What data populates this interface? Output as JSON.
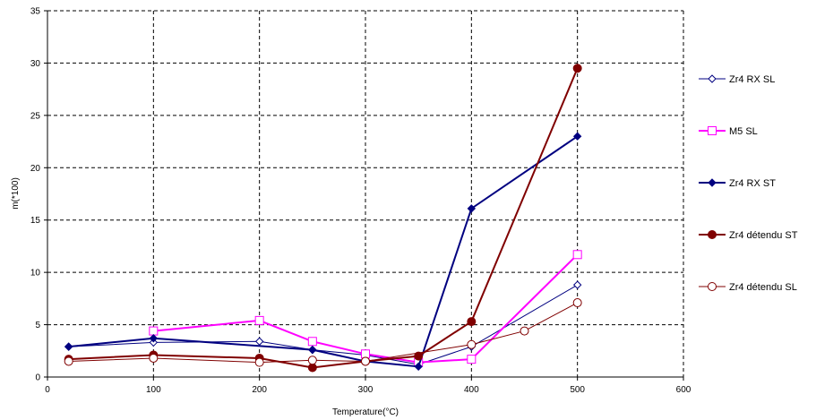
{
  "chart_data": {
    "type": "line",
    "xlabel": "Temperature(°C)",
    "ylabel": "m(*100)",
    "xlim": [
      0,
      600
    ],
    "ylim": [
      0,
      35
    ],
    "xticks": [
      0,
      100,
      200,
      300,
      400,
      500,
      600
    ],
    "yticks": [
      0,
      5,
      10,
      15,
      20,
      25,
      30,
      35
    ],
    "grid": true,
    "legend_position": "right",
    "series": [
      {
        "name": "Zr4 RX SL",
        "color": "#000080",
        "marker": "diamond-open",
        "line_width": 1,
        "x": [
          20,
          100,
          200,
          250,
          300,
          350,
          400,
          500
        ],
        "y": [
          2.9,
          3.3,
          3.4,
          2.6,
          2.1,
          1.2,
          2.9,
          8.8
        ]
      },
      {
        "name": "M5 SL",
        "color": "#ff00ff",
        "marker": "square-open",
        "line_width": 2,
        "x": [
          100,
          200,
          250,
          300,
          350,
          400,
          500
        ],
        "y": [
          4.4,
          5.4,
          3.4,
          2.2,
          1.4,
          1.7,
          11.7
        ]
      },
      {
        "name": "Zr4 RX ST",
        "color": "#000080",
        "marker": "diamond-filled",
        "line_width": 2,
        "x": [
          20,
          100,
          250,
          300,
          350,
          400,
          500
        ],
        "y": [
          2.9,
          3.7,
          2.6,
          1.5,
          1.0,
          16.1,
          23.0
        ]
      },
      {
        "name": "Zr4 détendu ST",
        "color": "#800000",
        "marker": "circle-filled",
        "line_width": 2,
        "x": [
          20,
          100,
          200,
          250,
          300,
          350,
          400,
          500
        ],
        "y": [
          1.7,
          2.1,
          1.8,
          0.9,
          1.5,
          2.0,
          5.3,
          29.5
        ]
      },
      {
        "name": "Zr4 détendu SL",
        "color": "#800000",
        "marker": "circle-open",
        "line_width": 1,
        "x": [
          20,
          100,
          200,
          250,
          300,
          400,
          450,
          500
        ],
        "y": [
          1.5,
          1.8,
          1.4,
          1.6,
          1.5,
          3.1,
          4.4,
          7.1
        ]
      }
    ]
  }
}
